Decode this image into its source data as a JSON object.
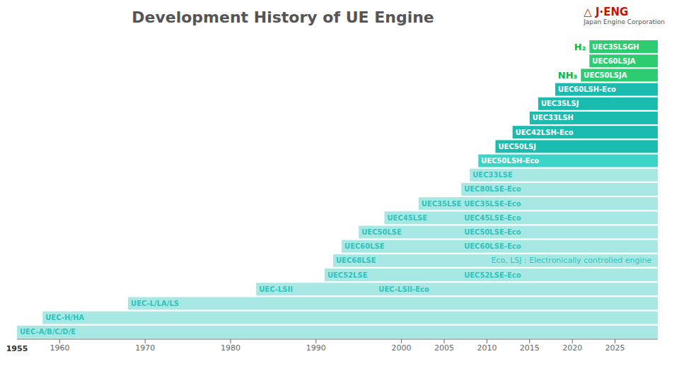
{
  "chart_data": {
    "type": "bar",
    "orientation": "horizontal",
    "title": "Development History of UE Engine",
    "xlim": [
      1955,
      2030
    ],
    "xticks": [
      1960,
      1970,
      1980,
      1990,
      2000,
      2005,
      2010,
      2015,
      2020,
      2025
    ],
    "tick_labels": "x",
    "categories": [
      null,
      null,
      null,
      null,
      null,
      null,
      null,
      null,
      null,
      null,
      null,
      null,
      null,
      null,
      null,
      null,
      null,
      null,
      null,
      null,
      null
    ],
    "values": [
      [
        1955,
        2030
      ],
      [
        1958,
        2030
      ],
      [
        1968,
        2030
      ],
      [
        1983,
        2030
      ],
      [
        1991,
        2030
      ],
      [
        1992,
        2030
      ],
      [
        1993,
        2030
      ],
      [
        1995,
        2030
      ],
      [
        1998,
        2030
      ],
      [
        2002,
        2030
      ],
      [
        2007,
        2030
      ],
      [
        2008,
        2030
      ],
      [
        2009,
        2030
      ],
      [
        2011,
        2030
      ],
      [
        2013,
        2030
      ],
      [
        2015,
        2030
      ],
      [
        2016,
        2030
      ],
      [
        2018,
        2030
      ],
      [
        2021,
        2030
      ],
      [
        2022,
        2030
      ],
      [
        2022,
        2030
      ]
    ],
    "colors": [
      "#A8E8E4",
      "#A8E8E4",
      "#A8E8E4",
      "#A8E8E4",
      "#A8E8E4",
      "#A8E8E4",
      "#A8E8E4",
      "#A8E8E4",
      "#A8E8E4",
      "#A8E8E4",
      "#A8E8E4",
      "#A8E8E4",
      "#3DD4C8",
      "#1BBCB0",
      "#1BBCB0",
      "#1BBCB0",
      "#1BBCB0",
      "#1BBCB0",
      "#2ECC71",
      "#2ECC71",
      "#2ECC71"
    ],
    "labels": [
      [
        {
          "text": "UEC-A/B/C/D/E",
          "x": 1955,
          "color": "#2EC4BC"
        }
      ],
      [
        {
          "text": "UEC-H/HA",
          "x": 1958,
          "color": "#2EC4BC"
        }
      ],
      [
        {
          "text": "UEC-L/LA/LS",
          "x": 1968,
          "color": "#2EC4BC"
        }
      ],
      [
        {
          "text": "UEC-LSII",
          "x": 1983,
          "color": "#2EC4BC"
        },
        {
          "text": "UEC-LSII-Eco",
          "x": 1997,
          "color": "#2EC4BC"
        }
      ],
      [
        {
          "text": "UEC52LSE",
          "x": 1991,
          "color": "#2EC4BC"
        },
        {
          "text": "UEC52LSE-Eco",
          "x": 2007,
          "color": "#2EC4BC"
        }
      ],
      [
        {
          "text": "UEC68LSE",
          "x": 1992,
          "color": "#2EC4BC"
        }
      ],
      [
        {
          "text": "UEC60LSE",
          "x": 1993,
          "color": "#2EC4BC"
        },
        {
          "text": "UEC60LSE-Eco",
          "x": 2007,
          "color": "#2EC4BC"
        }
      ],
      [
        {
          "text": "UEC50LSE",
          "x": 1995,
          "color": "#2EC4BC"
        },
        {
          "text": "UEC50LSE-Eco",
          "x": 2007,
          "color": "#2EC4BC"
        }
      ],
      [
        {
          "text": "UEC45LSE",
          "x": 1998,
          "color": "#2EC4BC"
        },
        {
          "text": "UEC45LSE-Eco",
          "x": 2007,
          "color": "#2EC4BC"
        }
      ],
      [
        {
          "text": "UEC35LSE",
          "x": 2002,
          "color": "#2EC4BC"
        },
        {
          "text": "UEC35LSE-Eco",
          "x": 2007,
          "color": "#2EC4BC"
        }
      ],
      [
        {
          "text": "UEC80LSE-Eco",
          "x": 2007,
          "color": "#2EC4BC"
        }
      ],
      [
        {
          "text": "UEC33LSE",
          "x": 2008,
          "color": "#2EC4BC"
        }
      ],
      [
        {
          "text": "UEC50LSH-Eco",
          "x": 2009,
          "color": "#ffffff"
        }
      ],
      [
        {
          "text": "UEC50LSJ",
          "x": 2011,
          "color": "#ffffff"
        }
      ],
      [
        {
          "text": "UEC42LSH-Eco",
          "x": 2013,
          "color": "#ffffff"
        }
      ],
      [
        {
          "text": "UEC33LSH",
          "x": 2015,
          "color": "#ffffff"
        }
      ],
      [
        {
          "text": "UEC35LSJ",
          "x": 2016,
          "color": "#ffffff"
        }
      ],
      [
        {
          "text": "UEC60LSH-Eco",
          "x": 2018,
          "color": "#ffffff"
        }
      ],
      [
        {
          "text": "UEC50LSJA",
          "x": 2021,
          "color": "#ffffff"
        }
      ],
      [
        {
          "text": "UEC60LSJA",
          "x": 2022,
          "color": "#ffffff"
        }
      ],
      [
        {
          "text": "UEC35LSGH",
          "x": 2022,
          "color": "#ffffff"
        }
      ]
    ],
    "side_labels": [
      {
        "text": "H₂",
        "row": 20,
        "color": "#00BB44"
      },
      {
        "text": "NH₃",
        "row": 18,
        "color": "#00BB44"
      }
    ],
    "annotations": [
      {
        "text": "Eco, LSJ :  Electronically controlled engine",
        "x": 2010.5,
        "row": 5,
        "color": "#2EC4BC"
      },
      {
        "text": "1955",
        "x": 1955
      },
      {
        "text": "△ J·ENG",
        "color": "#CC1100"
      },
      {
        "text": "Japan Engine Corporation"
      }
    ]
  }
}
